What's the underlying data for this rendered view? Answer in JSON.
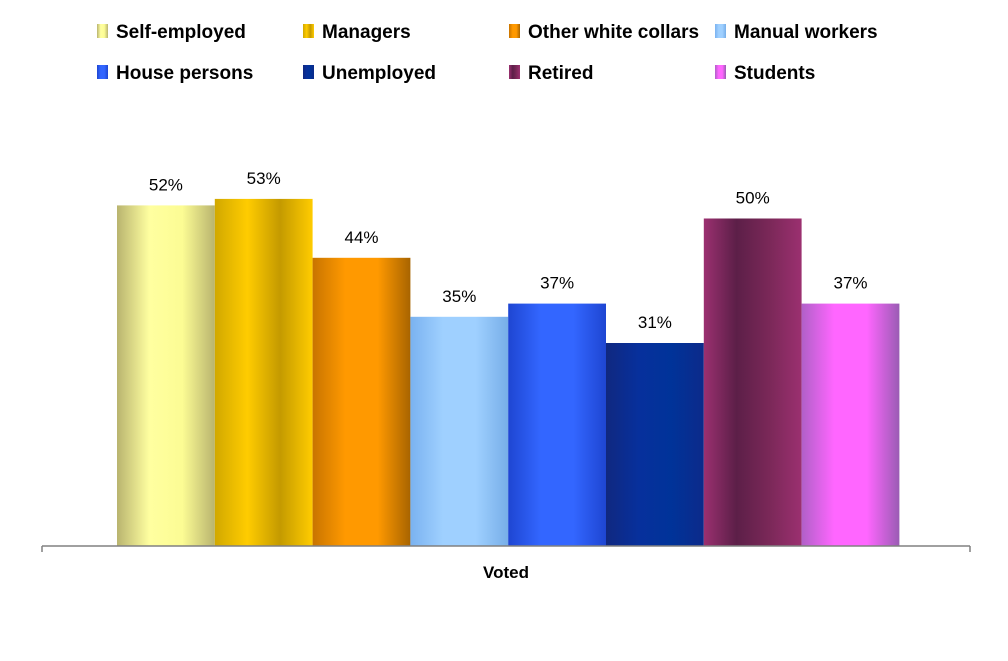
{
  "chart_data": {
    "type": "bar",
    "categories": [
      "Voted"
    ],
    "xlabel": "",
    "ylabel": "",
    "ylim": [
      0,
      60
    ],
    "grid": false,
    "legend_position": "top",
    "series": [
      {
        "name": "Self-employed",
        "values": [
          52
        ],
        "label": "52%",
        "colors": [
          "#b9b46f",
          "#ffffa0",
          "#fcfc94",
          "#b9b46f"
        ]
      },
      {
        "name": "Managers",
        "values": [
          53
        ],
        "label": "53%",
        "colors": [
          "#d1a800",
          "#ffcc00",
          "#c49a00",
          "#ffcc00"
        ]
      },
      {
        "name": "Other white collars",
        "values": [
          44
        ],
        "label": "44%",
        "colors": [
          "#c87400",
          "#ff9900",
          "#ff9900",
          "#a86400"
        ]
      },
      {
        "name": "Manual workers",
        "values": [
          35
        ],
        "label": "35%",
        "colors": [
          "#7ab2f0",
          "#9fd0ff",
          "#9fd0ff",
          "#77aee8"
        ]
      },
      {
        "name": "House persons",
        "values": [
          37
        ],
        "label": "37%",
        "colors": [
          "#1e46d2",
          "#3366ff",
          "#3366ff",
          "#1e46d2"
        ]
      },
      {
        "name": "Unemployed",
        "values": [
          31
        ],
        "label": "31%",
        "colors": [
          "#102880",
          "#07309c",
          "#003399",
          "#0c2a8a"
        ]
      },
      {
        "name": "Retired",
        "values": [
          50
        ],
        "label": "50%",
        "colors": [
          "#9b3070",
          "#5c1f48",
          "#7a2858",
          "#9b3070"
        ]
      },
      {
        "name": "Students",
        "values": [
          37
        ],
        "label": "37%",
        "colors": [
          "#b060c8",
          "#ff66ff",
          "#ff66ff",
          "#9a5cb4"
        ]
      }
    ]
  }
}
